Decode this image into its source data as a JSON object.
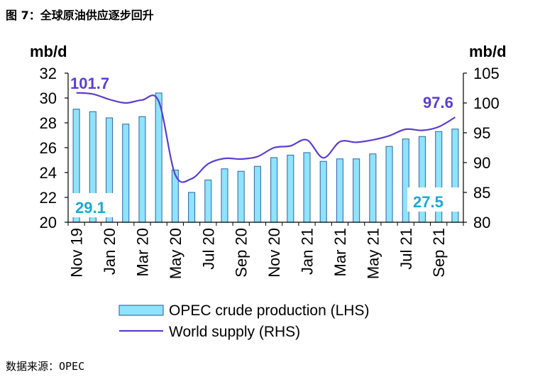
{
  "figure": {
    "title": "图 7：全球原油供应逐步回升",
    "source": "数据来源：OPEC"
  },
  "colors": {
    "bar_fill": "#8fe4fb",
    "bar_stroke": "#3a6fb0",
    "line": "#5b3fd0",
    "callout_blue": "#1aa9d6",
    "callout_purple": "#5b3fd0"
  },
  "chart_data": {
    "type": "bar",
    "categories": [
      "Nov 19",
      "Dec 19",
      "Jan 20",
      "Feb 20",
      "Mar 20",
      "Apr 20",
      "May 20",
      "Jun 20",
      "Jul 20",
      "Aug 20",
      "Sep 20",
      "Oct 20",
      "Nov 20",
      "Dec 20",
      "Jan 21",
      "Feb 21",
      "Mar 21",
      "Apr 21",
      "May 21",
      "Jun 21",
      "Jul 21",
      "Aug 21",
      "Sep 21",
      "Oct 21"
    ],
    "tick_labels": [
      "Nov 19",
      "Jan 20",
      "Mar 20",
      "May 20",
      "Jul 20",
      "Sep 20",
      "Nov 20",
      "Jan 21",
      "Mar 21",
      "May 21",
      "Jul 21",
      "Sep 21"
    ],
    "series": [
      {
        "name": "OPEC crude production (LHS)",
        "axis": "left",
        "type": "bar",
        "values": [
          29.1,
          28.9,
          28.4,
          27.9,
          28.5,
          30.4,
          24.2,
          22.4,
          23.4,
          24.3,
          24.1,
          24.5,
          25.2,
          25.4,
          25.6,
          24.9,
          25.1,
          25.1,
          25.5,
          26.1,
          26.7,
          26.9,
          27.3,
          27.5
        ]
      },
      {
        "name": "World supply (RHS)",
        "axis": "right",
        "type": "line",
        "values": [
          101.7,
          101.5,
          100.6,
          100.0,
          100.5,
          100.3,
          88.0,
          87.3,
          89.8,
          90.7,
          90.6,
          91.0,
          92.5,
          92.8,
          93.8,
          90.8,
          93.5,
          93.4,
          93.8,
          94.5,
          95.6,
          95.4,
          96.0,
          97.6
        ]
      }
    ],
    "left_axis": {
      "unit": "mb/d",
      "ylim": [
        20,
        32
      ],
      "ticks": [
        20,
        22,
        24,
        26,
        28,
        30,
        32
      ]
    },
    "right_axis": {
      "unit": "mb/d",
      "ylim": [
        80,
        105
      ],
      "ticks": [
        80,
        85,
        90,
        95,
        100,
        105
      ]
    },
    "annotations": {
      "bar_first": "29.1",
      "bar_last": "27.5",
      "line_first": "101.7",
      "line_last": "97.6"
    },
    "grid": false,
    "legend_position": "bottom"
  }
}
